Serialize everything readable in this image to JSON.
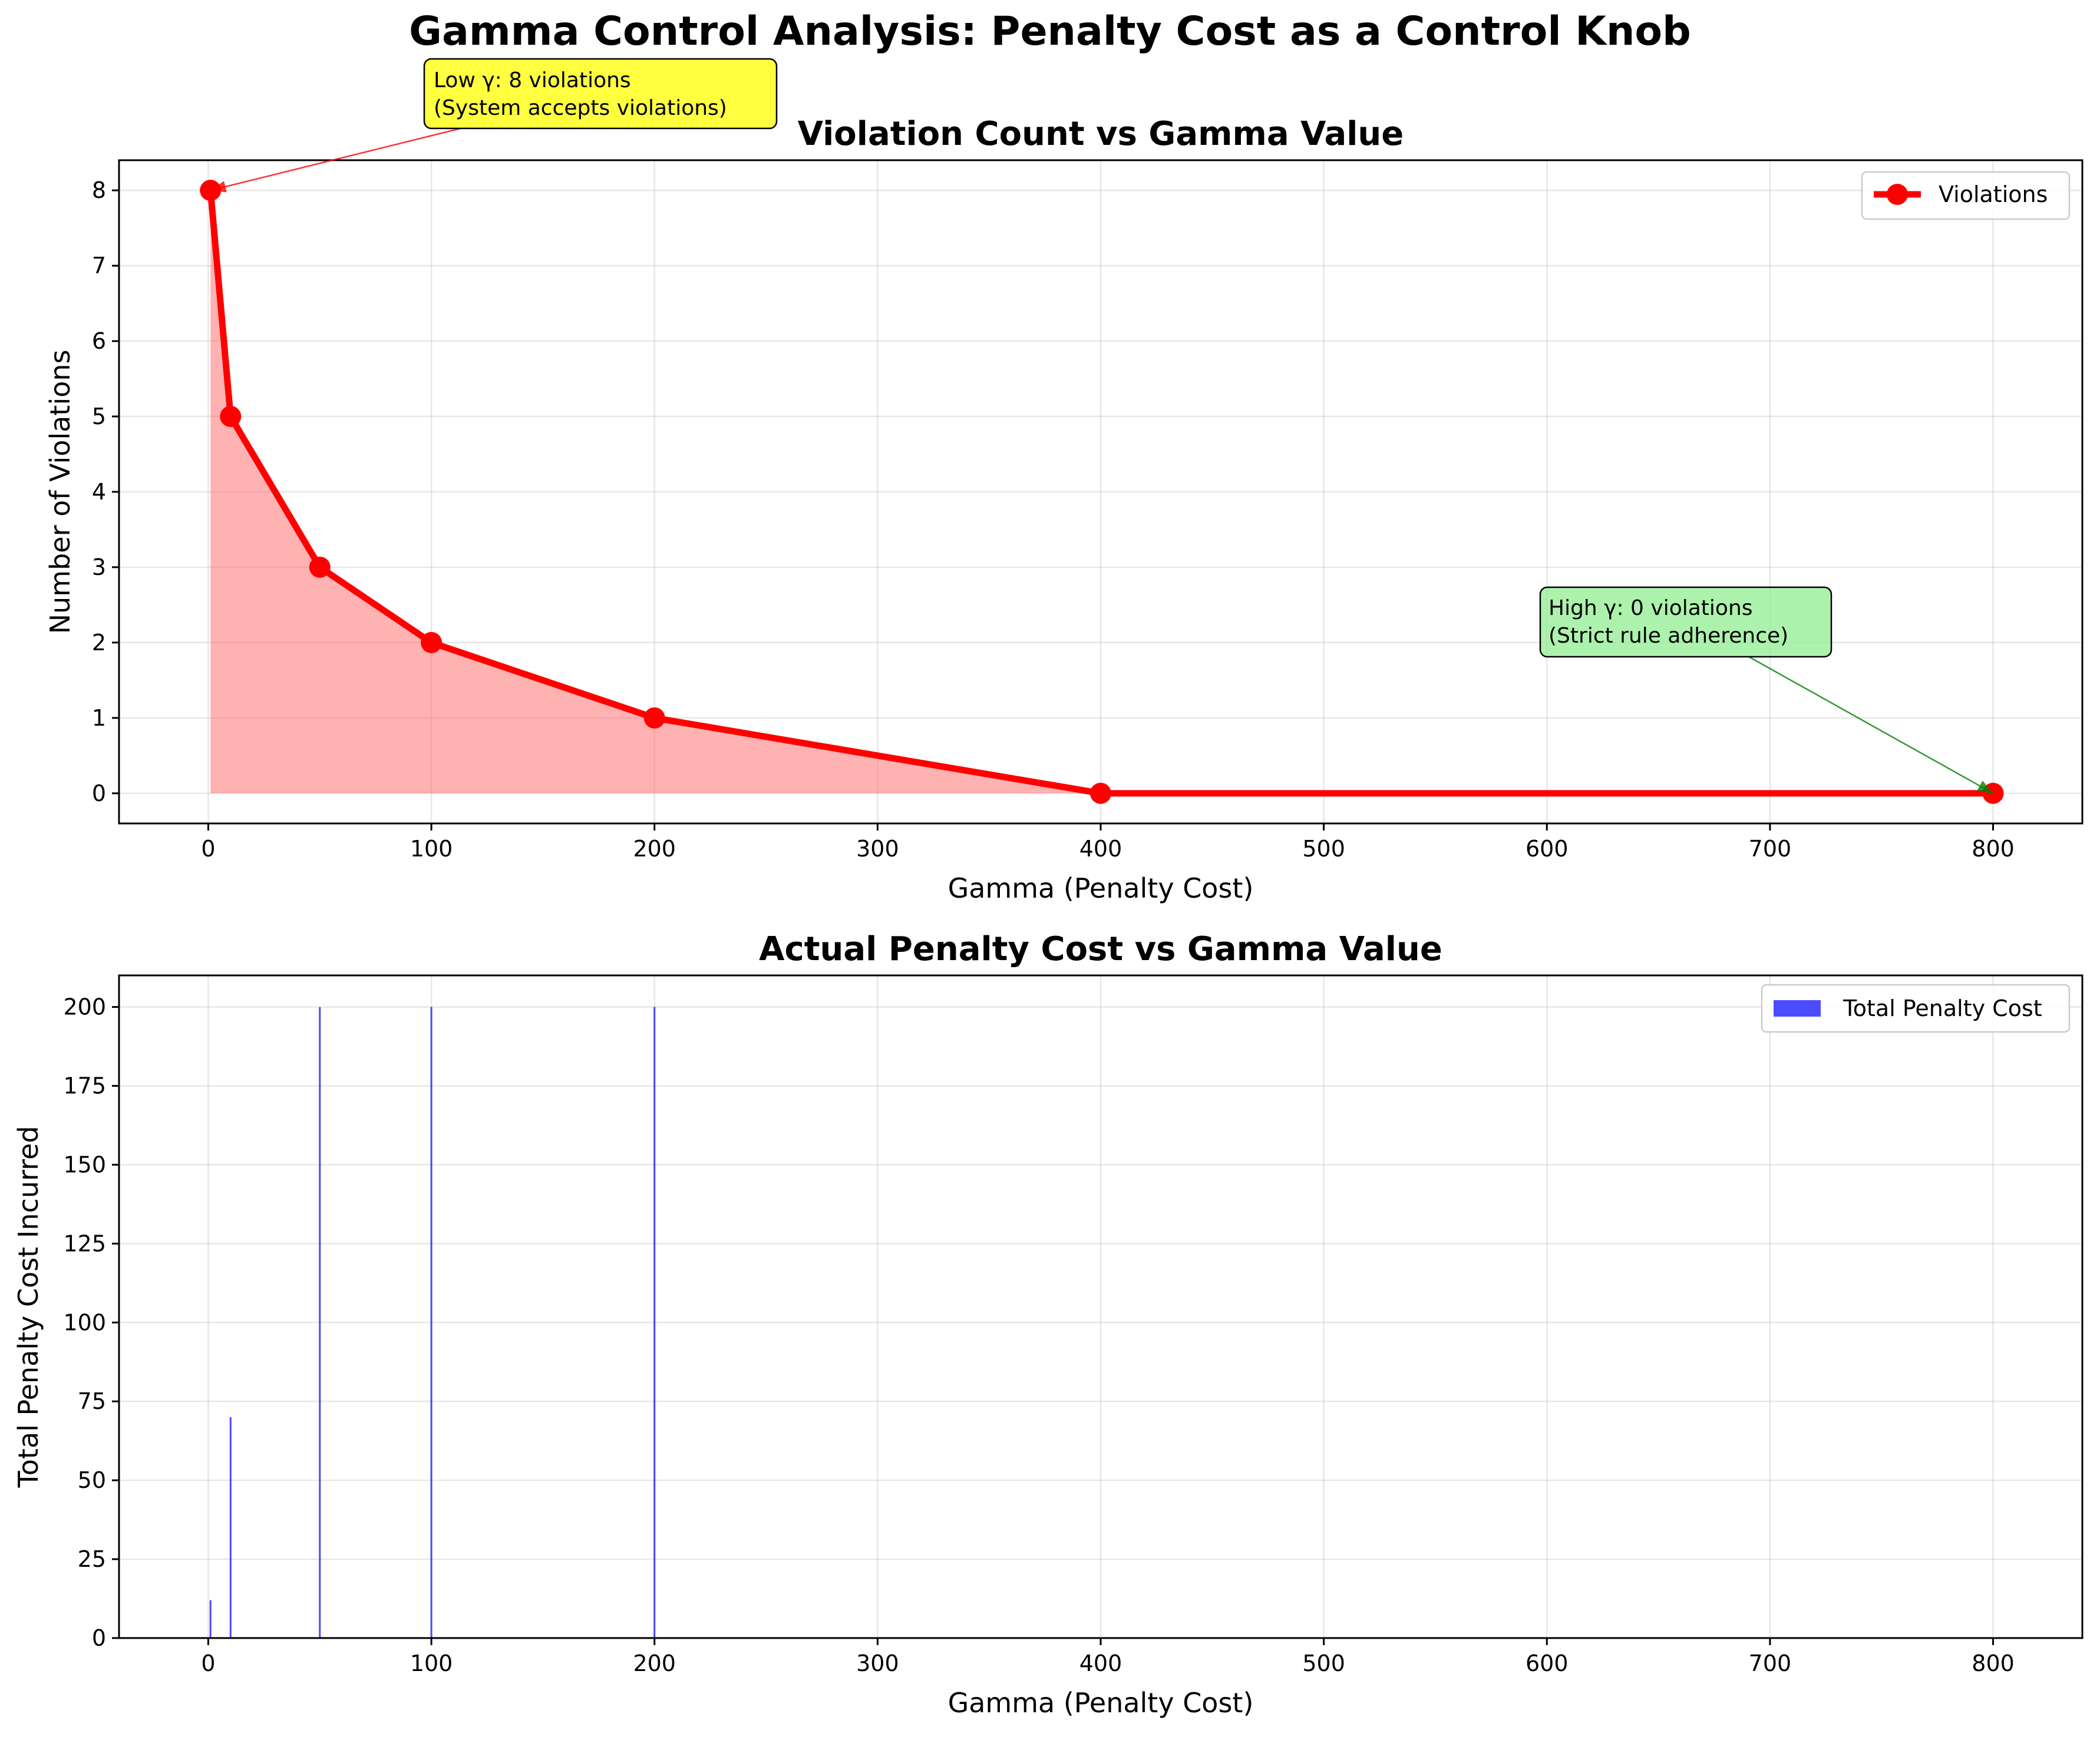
{
  "suptitle": "Gamma Control Analysis: Penalty Cost as a Control Knob",
  "chart_data": [
    {
      "type": "line",
      "title": "Violation Count vs Gamma Value",
      "xlabel": "Gamma (Penalty Cost)",
      "ylabel": "Number of Violations",
      "xlim": [
        -40,
        840
      ],
      "ylim": [
        -0.4,
        8.4
      ],
      "xticks": [
        0,
        100,
        200,
        300,
        400,
        500,
        600,
        700,
        800
      ],
      "yticks": [
        0,
        1,
        2,
        3,
        4,
        5,
        6,
        7,
        8
      ],
      "grid": true,
      "legend_position": "top-right",
      "series": [
        {
          "name": "Violations",
          "color": "#ff0000",
          "fill_color": "#ff6666",
          "marker": "circle",
          "x": [
            1,
            10,
            50,
            100,
            200,
            400,
            800
          ],
          "y": [
            8,
            5,
            3,
            2,
            1,
            0,
            0
          ]
        }
      ],
      "annotations": [
        {
          "lines": [
            "Low γ: 8 violations",
            "(System accepts violations)"
          ],
          "target": [
            1,
            8
          ],
          "bg_color": "#ffff00",
          "arrow_color": "#ff0000"
        },
        {
          "lines": [
            "High γ: 0 violations",
            "(Strict rule adherence)"
          ],
          "target": [
            800,
            0
          ],
          "bg_color": "#90ee90",
          "arrow_color": "#008000"
        }
      ]
    },
    {
      "type": "bar",
      "title": "Actual Penalty Cost vs Gamma Value",
      "xlabel": "Gamma (Penalty Cost)",
      "ylabel": "Total Penalty Cost Incurred",
      "xlim": [
        -40,
        840
      ],
      "ylim": [
        0,
        210
      ],
      "xticks": [
        0,
        100,
        200,
        300,
        400,
        500,
        600,
        700,
        800
      ],
      "yticks": [
        0,
        25,
        50,
        75,
        100,
        125,
        150,
        175,
        200
      ],
      "grid": true,
      "legend_position": "top-right",
      "series": [
        {
          "name": "Total Penalty Cost",
          "color": "#0000ff",
          "x": [
            1,
            10,
            50,
            100,
            200,
            400,
            800
          ],
          "values": [
            12,
            70,
            200,
            200,
            200,
            0,
            0
          ]
        }
      ]
    }
  ]
}
